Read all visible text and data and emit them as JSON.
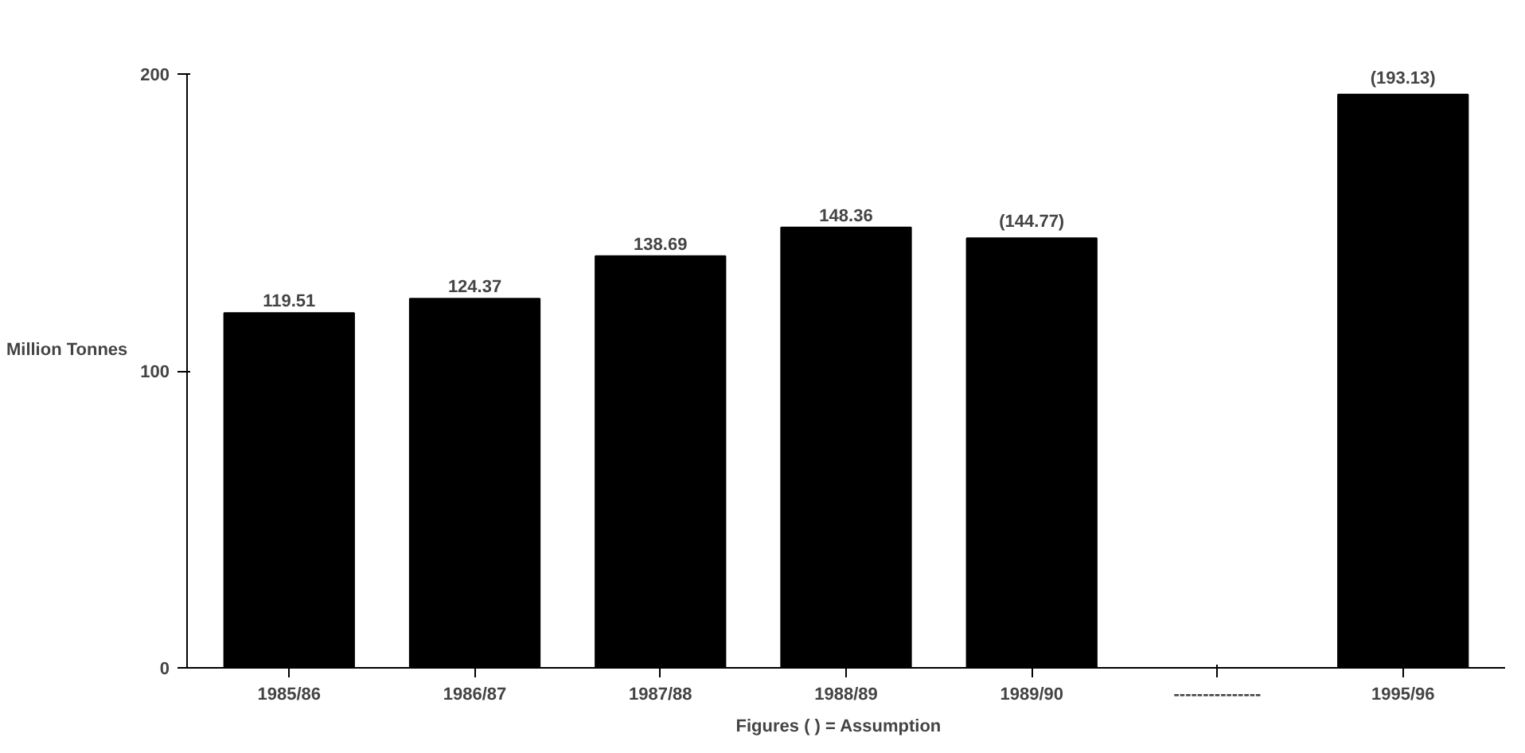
{
  "chart_data": {
    "type": "bar",
    "ylabel": "Million Tonnes",
    "xlabel": "Figures (    ) = Assumption",
    "categories": [
      "1985/86",
      "1986/87",
      "1987/88",
      "1988/89",
      "1989/90",
      "---------------",
      "1995/96"
    ],
    "values": [
      119.51,
      124.37,
      138.69,
      148.36,
      144.77,
      null,
      193.13
    ],
    "value_labels": [
      "119.51",
      "124.37",
      "138.69",
      "148.36",
      "(144.77)",
      null,
      "(193.13)"
    ],
    "color": "#000000",
    "ylim": [
      0,
      200
    ],
    "yticks": [
      0,
      100,
      200
    ],
    "grid": false
  }
}
